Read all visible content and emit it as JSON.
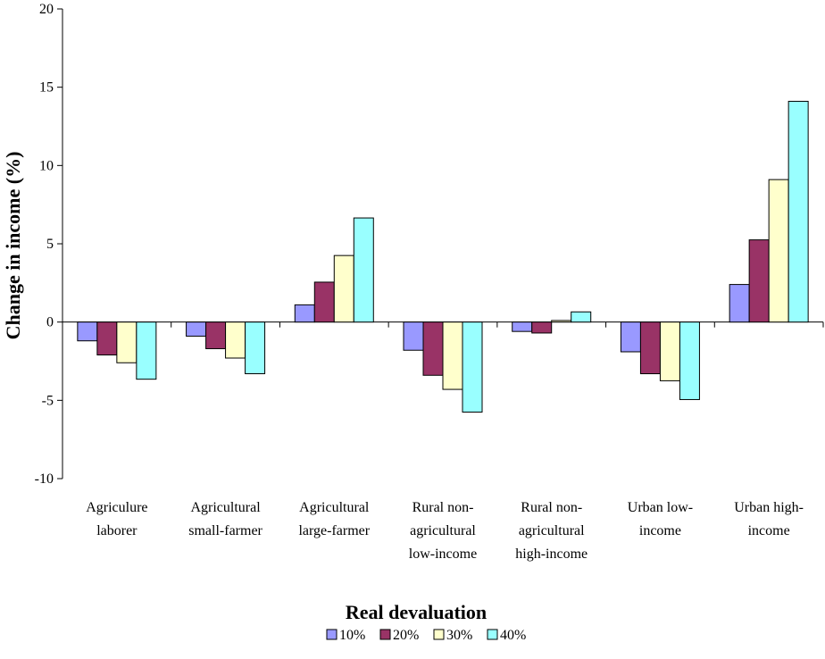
{
  "chart_data": {
    "type": "bar",
    "xlabel": "Real devaluation",
    "ylabel": "Change in income (%)",
    "ylim": [
      -10,
      20
    ],
    "yticks": [
      "20",
      "15",
      "10",
      "5",
      "0",
      "-5",
      "-10"
    ],
    "ytick_values": [
      20,
      15,
      10,
      5,
      0,
      -5,
      -10
    ],
    "categories": [
      [
        "Agriculure",
        "laborer"
      ],
      [
        "Agricultural",
        "small-farmer"
      ],
      [
        "Agricultural",
        "large-farmer"
      ],
      [
        "Rural non-",
        "agricultural",
        "low-income"
      ],
      [
        "Rural non-",
        "agricultural",
        "high-income"
      ],
      [
        "Urban low-",
        "income"
      ],
      [
        "Urban high-",
        "income"
      ]
    ],
    "series": [
      {
        "name": "10%",
        "color": "#9999FF",
        "values": [
          -1.2,
          -0.9,
          1.1,
          -1.8,
          -0.6,
          -1.9,
          2.4
        ]
      },
      {
        "name": "20%",
        "color": "#993366",
        "values": [
          -2.1,
          -1.7,
          2.55,
          -3.4,
          -0.7,
          -3.3,
          5.25
        ]
      },
      {
        "name": "30%",
        "color": "#FFFFCC",
        "values": [
          -2.6,
          -2.3,
          4.25,
          -4.3,
          0.1,
          -3.75,
          9.1
        ]
      },
      {
        "name": "40%",
        "color": "#99FFFF",
        "values": [
          -3.65,
          -3.3,
          6.65,
          -5.75,
          0.65,
          -4.95,
          14.1
        ]
      }
    ],
    "grid": false,
    "legend_position": "bottom"
  }
}
